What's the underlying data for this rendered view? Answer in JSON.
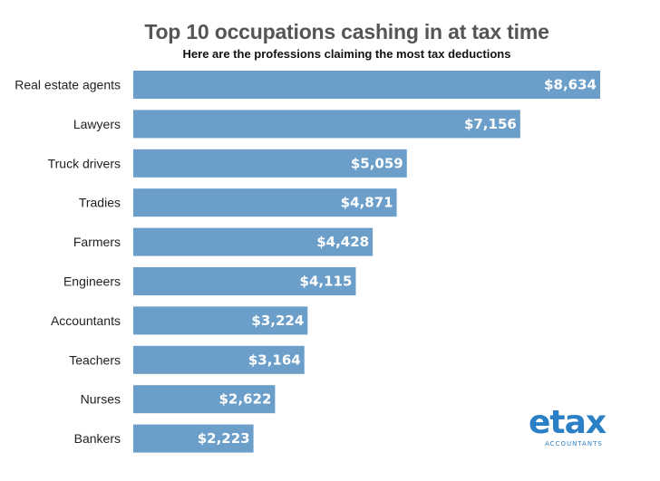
{
  "chart_data": {
    "type": "bar",
    "orientation": "horizontal",
    "title": "Top 10 occupations cashing in at tax time",
    "subtitle": "Here are the professions claiming the most tax deductions",
    "categories": [
      "Real estate agents",
      "Lawyers",
      "Truck drivers",
      "Tradies",
      "Farmers",
      "Engineers",
      "Accountants",
      "Teachers",
      "Nurses",
      "Bankers"
    ],
    "values": [
      8634,
      7156,
      5059,
      4871,
      4428,
      4115,
      3224,
      3164,
      2622,
      2223
    ],
    "value_labels": [
      "$8,634",
      "$7,156",
      "$5,059",
      "$4,871",
      "$4,428",
      "$4,115",
      "$3,224",
      "$3,164",
      "$2,622",
      "$2,223"
    ],
    "bar_color": "#6b9fc9",
    "xlim": [
      0,
      8634
    ],
    "grid": false,
    "legend": "none"
  },
  "logo": {
    "word": "etax",
    "sub": "ACCOUNTANTS",
    "color": "#2b7fc4"
  }
}
